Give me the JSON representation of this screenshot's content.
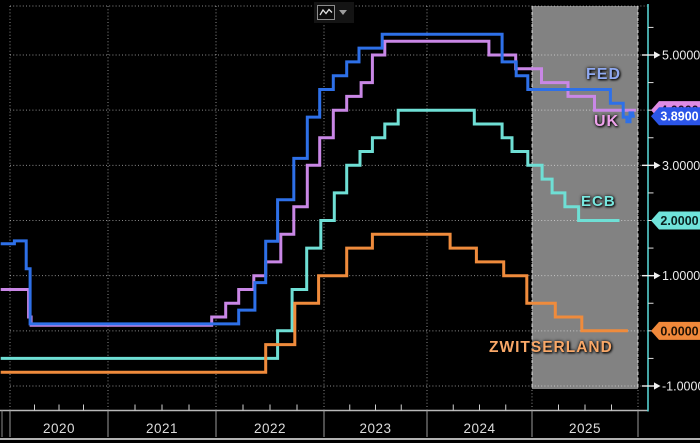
{
  "toolbar": {
    "chart_type_icon": "line-chart-icon",
    "dropdown_icon": "caret-down-icon"
  },
  "colors": {
    "background": "#000000",
    "axis_line": "#55d0d0",
    "x_axis_line": "#b8b8b8",
    "grid": "#ffffff",
    "forecast_region": "#828282",
    "axis_text": "#ececec"
  },
  "chart_data": {
    "type": "line",
    "title": "",
    "description": "Central bank policy rates (step lines) 2020-2025 with shaded 2025 forecast region",
    "x_axis": {
      "year_labels": [
        "2020",
        "2021",
        "2022",
        "2023",
        "2024",
        "2025"
      ],
      "year_boundaries": [
        2020,
        2021,
        2022,
        2023,
        2024,
        2025,
        2026
      ]
    },
    "y_axis": {
      "tick_labels": [
        "5.0000",
        "3.0000",
        "1.0000",
        "-1.0000"
      ],
      "tick_values": [
        5,
        3,
        1,
        -1
      ],
      "minor_tick_values": [
        5.5,
        4.5,
        4,
        3.5,
        2.5,
        2,
        1.5,
        0.5,
        0,
        -0.5
      ],
      "range": [
        -1.55,
        5.9
      ],
      "grid_values": [
        5,
        4,
        3,
        2,
        1,
        0,
        -1
      ]
    },
    "forecast_region": {
      "start_year": 2025,
      "end_year": 2026
    },
    "series": [
      {
        "name": "FED",
        "line_color": "#2e70e8",
        "label_color": "#8fa9f2",
        "badge": {
          "text": "3.8900",
          "bg": "#2b55e8",
          "fg": "#ffffff",
          "value": 3.89
        },
        "end_year": 2025.97,
        "points": [
          [
            2019.905,
            1.58
          ],
          [
            2020.045,
            1.63
          ],
          [
            2020.165,
            1.125
          ],
          [
            2020.205,
            0.125
          ],
          [
            2022.21,
            0.375
          ],
          [
            2022.36,
            0.875
          ],
          [
            2022.46,
            1.625
          ],
          [
            2022.57,
            2.375
          ],
          [
            2022.72,
            3.125
          ],
          [
            2022.845,
            3.875
          ],
          [
            2022.96,
            4.375
          ],
          [
            2023.09,
            4.625
          ],
          [
            2023.22,
            4.875
          ],
          [
            2023.34,
            5.125
          ],
          [
            2023.565,
            5.375
          ],
          [
            2024.715,
            4.875
          ],
          [
            2024.85,
            4.625
          ],
          [
            2024.96,
            4.375
          ],
          [
            2025.74,
            4.125
          ],
          [
            2025.86,
            3.875
          ],
          [
            2025.895,
            3.79
          ],
          [
            2025.925,
            3.95
          ],
          [
            2025.95,
            3.89
          ]
        ]
      },
      {
        "name": "UK",
        "line_color": "#c987e6",
        "label_color": "#efa3ec",
        "badge": {
          "text": "4.0000",
          "bg": "#df8be4",
          "fg": "#231024",
          "value": 4.0
        },
        "end_year": 2025.98,
        "points": [
          [
            2019.905,
            0.75
          ],
          [
            2020.19,
            0.25
          ],
          [
            2020.215,
            0.1
          ],
          [
            2021.96,
            0.25
          ],
          [
            2022.09,
            0.5
          ],
          [
            2022.21,
            0.75
          ],
          [
            2022.35,
            1.0
          ],
          [
            2022.46,
            1.25
          ],
          [
            2022.6,
            1.75
          ],
          [
            2022.72,
            2.25
          ],
          [
            2022.845,
            3.0
          ],
          [
            2022.96,
            3.5
          ],
          [
            2023.09,
            4.0
          ],
          [
            2023.22,
            4.25
          ],
          [
            2023.36,
            4.5
          ],
          [
            2023.47,
            5.0
          ],
          [
            2023.59,
            5.25
          ],
          [
            2024.59,
            5.0
          ],
          [
            2024.845,
            4.75
          ],
          [
            2025.09,
            4.5
          ],
          [
            2025.34,
            4.25
          ],
          [
            2025.59,
            4.0
          ]
        ]
      },
      {
        "name": "ECB",
        "line_color": "#6fdfd5",
        "label_color": "#79e8e0",
        "badge": {
          "text": "2.0000",
          "bg": "#6fe3da",
          "fg": "#0a211f",
          "value": 2.0
        },
        "end_year": 2025.825,
        "points": [
          [
            2019.905,
            -0.5
          ],
          [
            2022.57,
            0.0
          ],
          [
            2022.705,
            0.75
          ],
          [
            2022.84,
            1.5
          ],
          [
            2022.97,
            2.0
          ],
          [
            2023.1,
            2.5
          ],
          [
            2023.22,
            3.0
          ],
          [
            2023.35,
            3.25
          ],
          [
            2023.47,
            3.5
          ],
          [
            2023.59,
            3.75
          ],
          [
            2023.72,
            4.0
          ],
          [
            2024.45,
            3.75
          ],
          [
            2024.715,
            3.5
          ],
          [
            2024.81,
            3.25
          ],
          [
            2024.96,
            3.0
          ],
          [
            2025.095,
            2.75
          ],
          [
            2025.19,
            2.5
          ],
          [
            2025.31,
            2.25
          ],
          [
            2025.44,
            2.0
          ]
        ]
      },
      {
        "name": "ZWITSERLAND",
        "line_color": "#ef8b3c",
        "label_color": "#f9a868",
        "badge": {
          "text": "0.0000",
          "bg": "#f0883a",
          "fg": "#221204",
          "value": 0.0
        },
        "end_year": 2025.905,
        "points": [
          [
            2019.905,
            -0.75
          ],
          [
            2022.46,
            -0.25
          ],
          [
            2022.73,
            0.5
          ],
          [
            2022.95,
            1.0
          ],
          [
            2023.22,
            1.5
          ],
          [
            2023.47,
            1.75
          ],
          [
            2024.22,
            1.5
          ],
          [
            2024.47,
            1.25
          ],
          [
            2024.73,
            1.0
          ],
          [
            2024.95,
            0.5
          ],
          [
            2025.22,
            0.25
          ],
          [
            2025.47,
            0.0
          ]
        ]
      }
    ]
  }
}
